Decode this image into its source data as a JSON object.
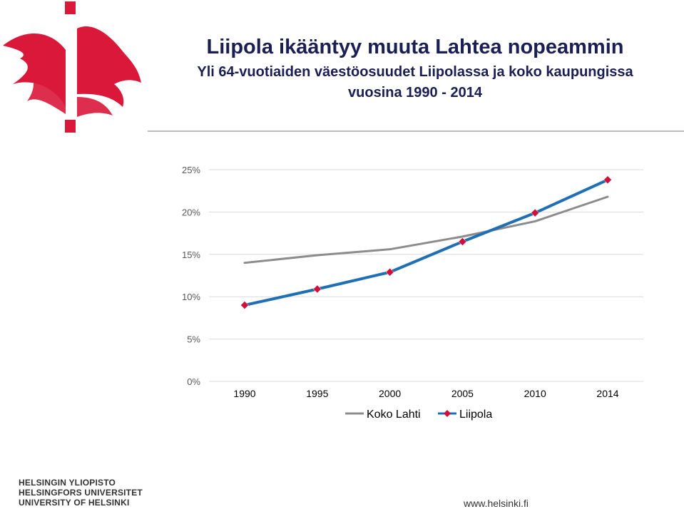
{
  "title": "Liipola ikääntyy muuta Lahtea nopeammin",
  "subtitle_line1": "Yli 64-vuotiaiden väestöosuudet Liipolassa ja koko kaupungissa",
  "subtitle_line2": "vuosina 1990 - 2014",
  "footer": {
    "university_lines": [
      "HELSINGIN YLIOPISTO",
      "HELSINGFORS UNIVERSITET",
      "UNIVERSITY OF HELSINKI"
    ],
    "website": "www.helsinki.fi"
  },
  "logo_icon": "helsinki-flame-logo",
  "chart_data": {
    "type": "line",
    "categories": [
      "1990",
      "1995",
      "2000",
      "2005",
      "2010",
      "2014"
    ],
    "ylim": [
      0,
      25
    ],
    "yticks": [
      "0%",
      "5%",
      "10%",
      "15%",
      "20%",
      "25%"
    ],
    "grid": true,
    "legend_position": "bottom",
    "series": [
      {
        "name": "Koko Lahti",
        "values": [
          14.0,
          14.9,
          15.6,
          17.1,
          18.9,
          21.8
        ],
        "color": "#8c8c8c",
        "marker": "none"
      },
      {
        "name": "Liipola",
        "values": [
          9.0,
          10.9,
          12.9,
          16.5,
          19.9,
          23.8
        ],
        "color": "#1f6fb5",
        "marker": "diamond",
        "marker_color": "#d0103a"
      }
    ]
  }
}
